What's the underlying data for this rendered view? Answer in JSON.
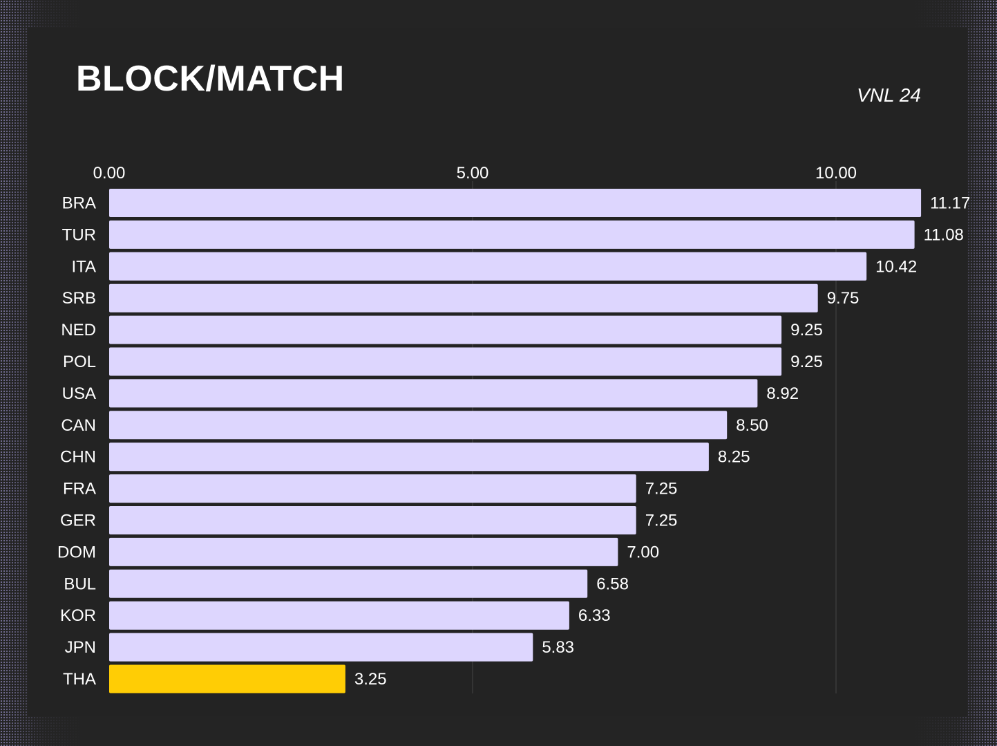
{
  "title": "BLOCK/MATCH",
  "subtitle": "VNL 24",
  "colors": {
    "background": "#232323",
    "bar": "#ddd6fe",
    "highlight": "#ffcd05",
    "text": "#ffffff"
  },
  "chart_data": {
    "type": "bar",
    "orientation": "horizontal",
    "title": "BLOCK/MATCH",
    "subtitle": "VNL 24",
    "xlabel": "",
    "ylabel": "",
    "xlim": [
      0,
      11.17
    ],
    "xticks": [
      0,
      5,
      10
    ],
    "xtick_labels": [
      "0.00",
      "5.00",
      "10.00"
    ],
    "x_axis_position": "top",
    "grid": true,
    "categories": [
      "BRA",
      "TUR",
      "ITA",
      "SRB",
      "NED",
      "POL",
      "USA",
      "CAN",
      "CHN",
      "FRA",
      "GER",
      "DOM",
      "BUL",
      "KOR",
      "JPN",
      "THA"
    ],
    "values": [
      11.17,
      11.08,
      10.42,
      9.75,
      9.25,
      9.25,
      8.92,
      8.5,
      8.25,
      7.25,
      7.25,
      7.0,
      6.58,
      6.33,
      5.83,
      3.25
    ],
    "value_labels": [
      "11.17",
      "11.08",
      "10.42",
      "9.75",
      "9.25",
      "9.25",
      "8.92",
      "8.50",
      "8.25",
      "7.25",
      "7.25",
      "7.00",
      "6.58",
      "6.33",
      "5.83",
      "3.25"
    ],
    "highlight_category": "THA"
  }
}
